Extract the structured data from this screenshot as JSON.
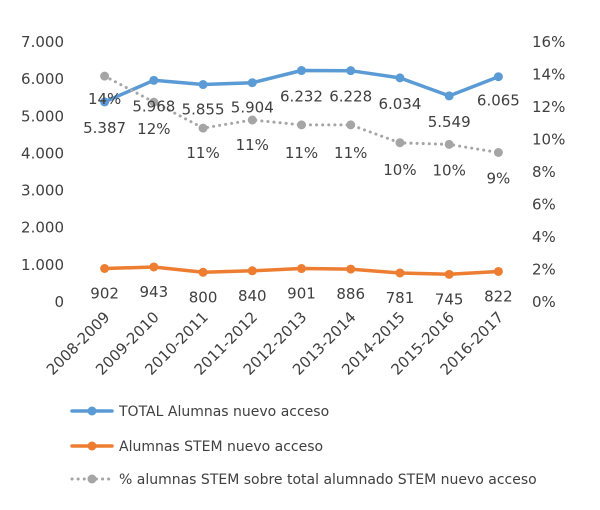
{
  "chart_data": {
    "type": "line",
    "categories": [
      "2008-2009",
      "2009-2010",
      "2010-2011",
      "2011-2012",
      "2012-2013",
      "2013-2014",
      "2014-2015",
      "2015-2016",
      "2016-2017"
    ],
    "y_left": {
      "lim": [
        0,
        7000
      ],
      "ticks": [
        "0",
        "1.000",
        "2.000",
        "3.000",
        "4.000",
        "5.000",
        "6.000",
        "7.000"
      ],
      "tick_values": [
        0,
        1000,
        2000,
        3000,
        4000,
        5000,
        6000,
        7000
      ]
    },
    "y_right": {
      "lim": [
        0,
        16
      ],
      "ticks": [
        "0%",
        "2%",
        "4%",
        "6%",
        "8%",
        "10%",
        "12%",
        "14%",
        "16%"
      ],
      "tick_values": [
        0,
        2,
        4,
        6,
        8,
        10,
        12,
        14,
        16
      ]
    },
    "grid": false,
    "legend_position": "bottom",
    "series": [
      {
        "name": "TOTAL Alumnas nuevo acceso",
        "axis": "left",
        "color": "#5b9bd5",
        "style": "solid",
        "values": [
          5387,
          5968,
          5855,
          5904,
          6232,
          6228,
          6034,
          5549,
          6065
        ],
        "labels": [
          "5.387",
          "5.968",
          "5.855",
          "5.904",
          "6.232",
          "6.228",
          "6.034",
          "5.549",
          "6.065"
        ]
      },
      {
        "name": "Alumnas STEM nuevo acceso",
        "axis": "left",
        "color": "#ed7d31",
        "style": "solid",
        "values": [
          902,
          943,
          800,
          840,
          901,
          886,
          781,
          745,
          822
        ],
        "labels": [
          "902",
          "943",
          "800",
          "840",
          "901",
          "886",
          "781",
          "745",
          "822"
        ]
      },
      {
        "name": "% alumnas STEM sobre total alumnado STEM nuevo acceso",
        "axis": "right",
        "color": "#a5a5a5",
        "style": "dotted",
        "values": [
          13.9,
          12.3,
          10.7,
          11.2,
          10.9,
          10.9,
          9.8,
          9.7,
          9.2
        ],
        "labels": [
          "14%",
          "12%",
          "11%",
          "11%",
          "11%",
          "11%",
          "10%",
          "10%",
          "9%"
        ]
      }
    ]
  }
}
